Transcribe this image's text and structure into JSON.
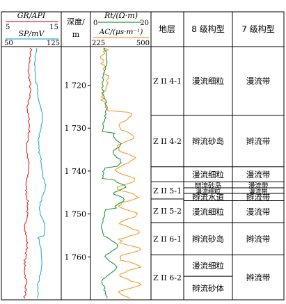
{
  "header": {
    "gr_label": "GR/API",
    "gr_min": "5",
    "gr_max": "15",
    "sp_label": "SP/mV",
    "sp_min": "50",
    "sp_max": "125",
    "depth_label_1": "深度/",
    "depth_label_2": "m",
    "rt_label": "Rt/(Ω·m)",
    "rt_min": "0",
    "rt_max": "20",
    "ac_label": "AC/(μs·m⁻¹)",
    "ac_min": "225",
    "ac_max": "500",
    "layer_label": "地层",
    "config8_label": "8 级构型",
    "config7_label": "7 级构型"
  },
  "depth_ticks": [
    {
      "depth": 1720,
      "label": "1 720"
    },
    {
      "depth": 1730,
      "label": "1 730"
    },
    {
      "depth": 1740,
      "label": "1 740"
    },
    {
      "depth": 1750,
      "label": "1 750"
    },
    {
      "depth": 1760,
      "label": "1 760"
    }
  ],
  "depth_range": [
    1711,
    1770
  ],
  "layers": [
    {
      "name": "Z II 4-1",
      "top": 1711,
      "bottom": 1727
    },
    {
      "name": "Z II 4-2",
      "top": 1727,
      "bottom": 1739
    },
    {
      "name": "",
      "top": 1739,
      "bottom": 1742.5
    },
    {
      "name": "Z II 5-1",
      "top": 1742.5,
      "bottom": 1746.5
    },
    {
      "name": "Z II 5-2",
      "top": 1746.5,
      "bottom": 1752
    },
    {
      "name": "Z II 6-1",
      "top": 1752,
      "bottom": 1759.5
    },
    {
      "name": "Z II 6-2",
      "top": 1759.5,
      "bottom": 1770
    }
  ],
  "config8": [
    {
      "label": "漫流细粒",
      "top": 1711,
      "bottom": 1727
    },
    {
      "label": "辫流砂岛",
      "top": 1727,
      "bottom": 1739
    },
    {
      "label": "漫流细粒",
      "top": 1739,
      "bottom": 1742.5
    },
    {
      "label": "辫流砂岛",
      "top": 1742.5,
      "bottom": 1743.9
    },
    {
      "label": "漫流细粒",
      "top": 1743.9,
      "bottom": 1745.2
    },
    {
      "label": "辫流水道",
      "top": 1745.2,
      "bottom": 1746.9
    },
    {
      "label": "漫流细粒",
      "top": 1746.9,
      "bottom": 1752
    },
    {
      "label": "辫流砂岛",
      "top": 1752,
      "bottom": 1759.5
    },
    {
      "label": "漫流细粒",
      "top": 1759.5,
      "bottom": 1764.5
    },
    {
      "label": "辫流砂体",
      "top": 1764.5,
      "bottom": 1770
    }
  ],
  "config7": [
    {
      "label": "漫流带",
      "top": 1711,
      "bottom": 1727
    },
    {
      "label": "辫流带",
      "top": 1727,
      "bottom": 1739
    },
    {
      "label": "漫流带",
      "top": 1739,
      "bottom": 1742.5
    },
    {
      "label": "漫流带",
      "top": 1742.5,
      "bottom": 1743.9
    },
    {
      "label": "漫流带",
      "top": 1743.9,
      "bottom": 1745.2
    },
    {
      "label": "辫流带",
      "top": 1745.2,
      "bottom": 1746.9
    },
    {
      "label": "漫流带",
      "top": 1746.9,
      "bottom": 1752
    },
    {
      "label": "辫流带",
      "top": 1752,
      "bottom": 1759.5
    },
    {
      "label": "辫流带",
      "top": 1759.5,
      "bottom": 1770
    }
  ],
  "colors": {
    "gr": "#e8262b",
    "sp": "#2aa9e0",
    "rt": "#1f9a3a",
    "ac": "#f39a2a",
    "frame": "#000000",
    "grid": "#999999"
  }
}
